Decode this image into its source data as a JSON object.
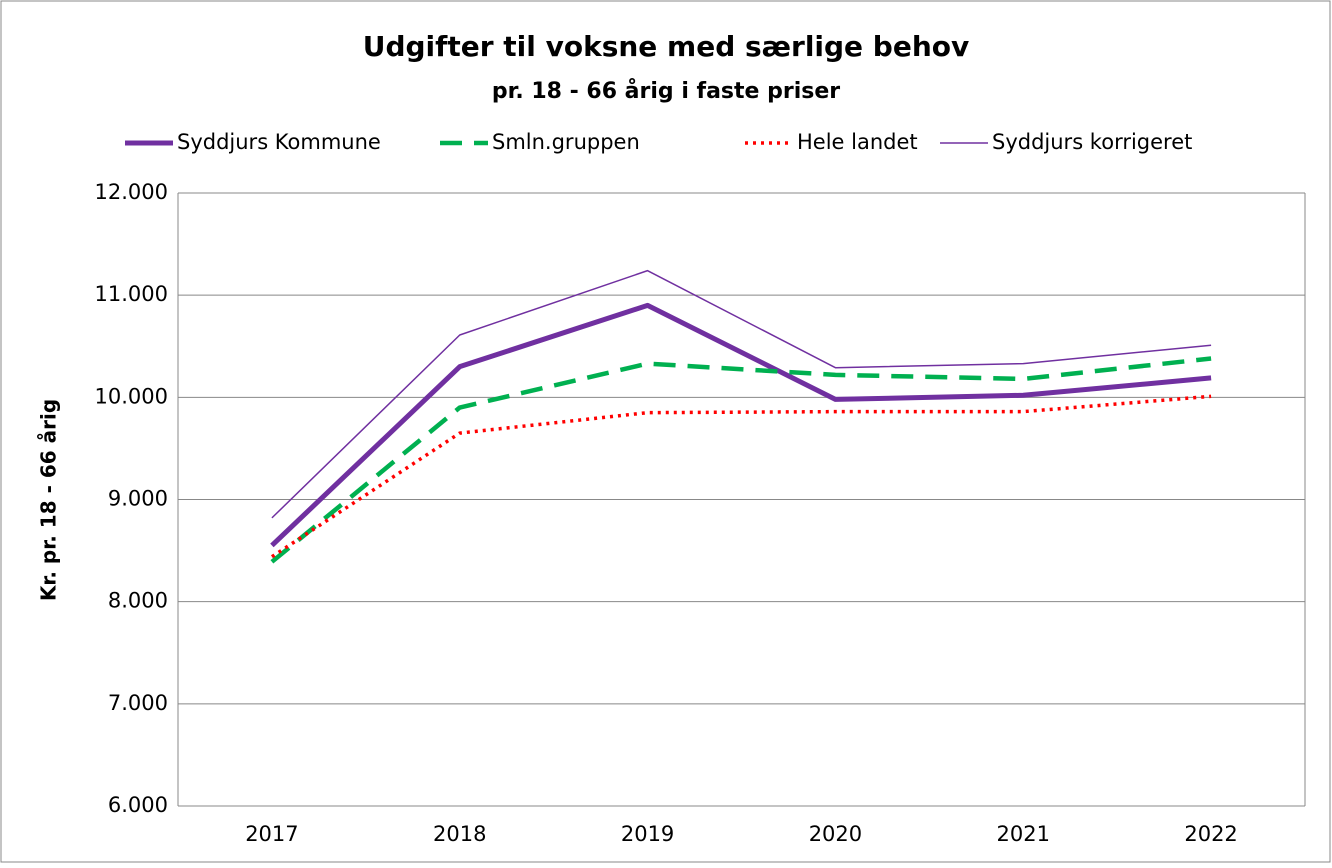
{
  "chart_data": {
    "type": "line",
    "title": "Udgifter til voksne med særlige behov",
    "subtitle": "pr. 18 - 66 årig i faste priser",
    "y_label": "Kr. pr. 18 - 66 årig",
    "categories": [
      "2017",
      "2018",
      "2019",
      "2020",
      "2021",
      "2022"
    ],
    "series": [
      {
        "name": "Syddjurs Kommune",
        "color": "#7030a0",
        "width": 5,
        "dash": "none",
        "values": [
          8550,
          10300,
          10900,
          9980,
          10020,
          10190
        ]
      },
      {
        "name": "Smln.gruppen",
        "color": "#00b050",
        "width": 4.5,
        "dash": "22 12",
        "values": [
          8390,
          9900,
          10330,
          10220,
          10180,
          10380
        ]
      },
      {
        "name": "Hele landet",
        "color": "#ff0000",
        "width": 3.5,
        "dash": "3 5",
        "values": [
          8440,
          9650,
          9850,
          9860,
          9860,
          10010
        ]
      },
      {
        "name": "Syddjurs korrigeret",
        "color": "#7030a0",
        "width": 1.5,
        "dash": "none",
        "values": [
          8820,
          10610,
          11240,
          10290,
          10330,
          10510
        ]
      }
    ],
    "ylim": [
      6000,
      12000
    ],
    "yticks": [
      {
        "value": 6000,
        "label": "6.000"
      },
      {
        "value": 7000,
        "label": "7.000"
      },
      {
        "value": 8000,
        "label": "8.000"
      },
      {
        "value": 9000,
        "label": "9.000"
      },
      {
        "value": 10000,
        "label": "10.000"
      },
      {
        "value": 11000,
        "label": "11.000"
      },
      {
        "value": 12000,
        "label": "12.000"
      }
    ],
    "grid": true,
    "legend": "top"
  }
}
